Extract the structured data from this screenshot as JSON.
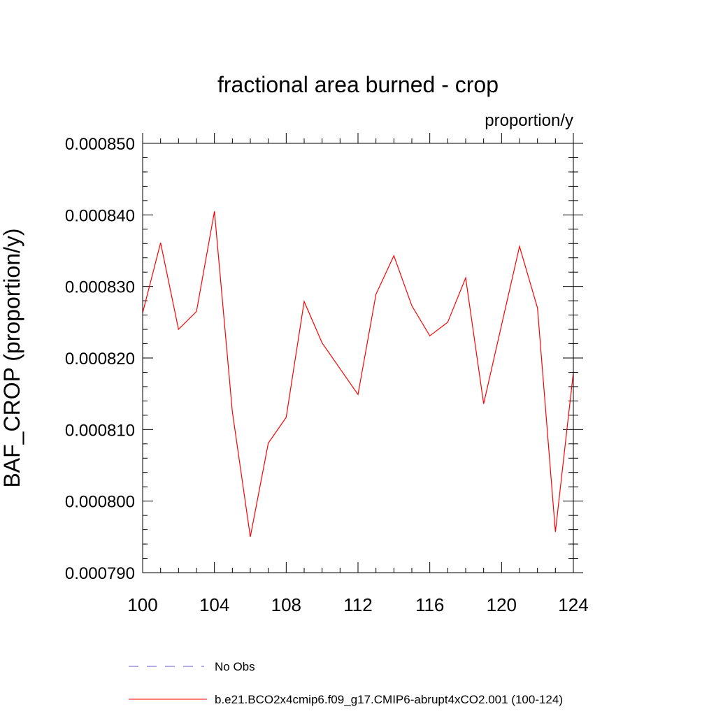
{
  "chart_data": {
    "type": "line",
    "title": "fractional area burned - crop",
    "units_label": "proportion/y",
    "ylabel": "BAF_CROP  (proportion/y)",
    "xlabel": "",
    "xlim": [
      100,
      124
    ],
    "ylim": [
      0.00079,
      0.00085
    ],
    "x_ticks": [
      100,
      104,
      108,
      112,
      116,
      120,
      124
    ],
    "y_ticks": [
      "0.000790",
      "0.000800",
      "0.000810",
      "0.000820",
      "0.000830",
      "0.000840",
      "0.000850"
    ],
    "x": [
      100,
      101,
      102,
      103,
      104,
      105,
      106,
      107,
      108,
      109,
      110,
      111,
      112,
      113,
      114,
      115,
      116,
      117,
      118,
      119,
      120,
      121,
      122,
      123,
      124
    ],
    "series": [
      {
        "name": "b.e21.BCO2x4cmip6.f09_g17.CMIP6-abrupt4xCO2.001 (100-124)",
        "color": "#ff0000",
        "values": [
          0.0008263,
          0.0008361,
          0.000824,
          0.0008265,
          0.0008405,
          0.0008125,
          0.000795,
          0.0008081,
          0.0008117,
          0.0008279,
          0.0008221,
          0.0008185,
          0.0008149,
          0.0008289,
          0.0008343,
          0.0008273,
          0.0008231,
          0.000825,
          0.0008312,
          0.0008136,
          0.0008246,
          0.0008356,
          0.000827,
          0.0007957,
          0.000818
        ]
      }
    ],
    "legend": [
      {
        "label": "No Obs",
        "color": "#6a5acd",
        "style": "dashed"
      },
      {
        "label": "b.e21.BCO2x4cmip6.f09_g17.CMIP6-abrupt4xCO2.001 (100-124)",
        "color": "#ff0000",
        "style": "solid"
      }
    ],
    "grid": false,
    "legend_position": "bottom"
  }
}
